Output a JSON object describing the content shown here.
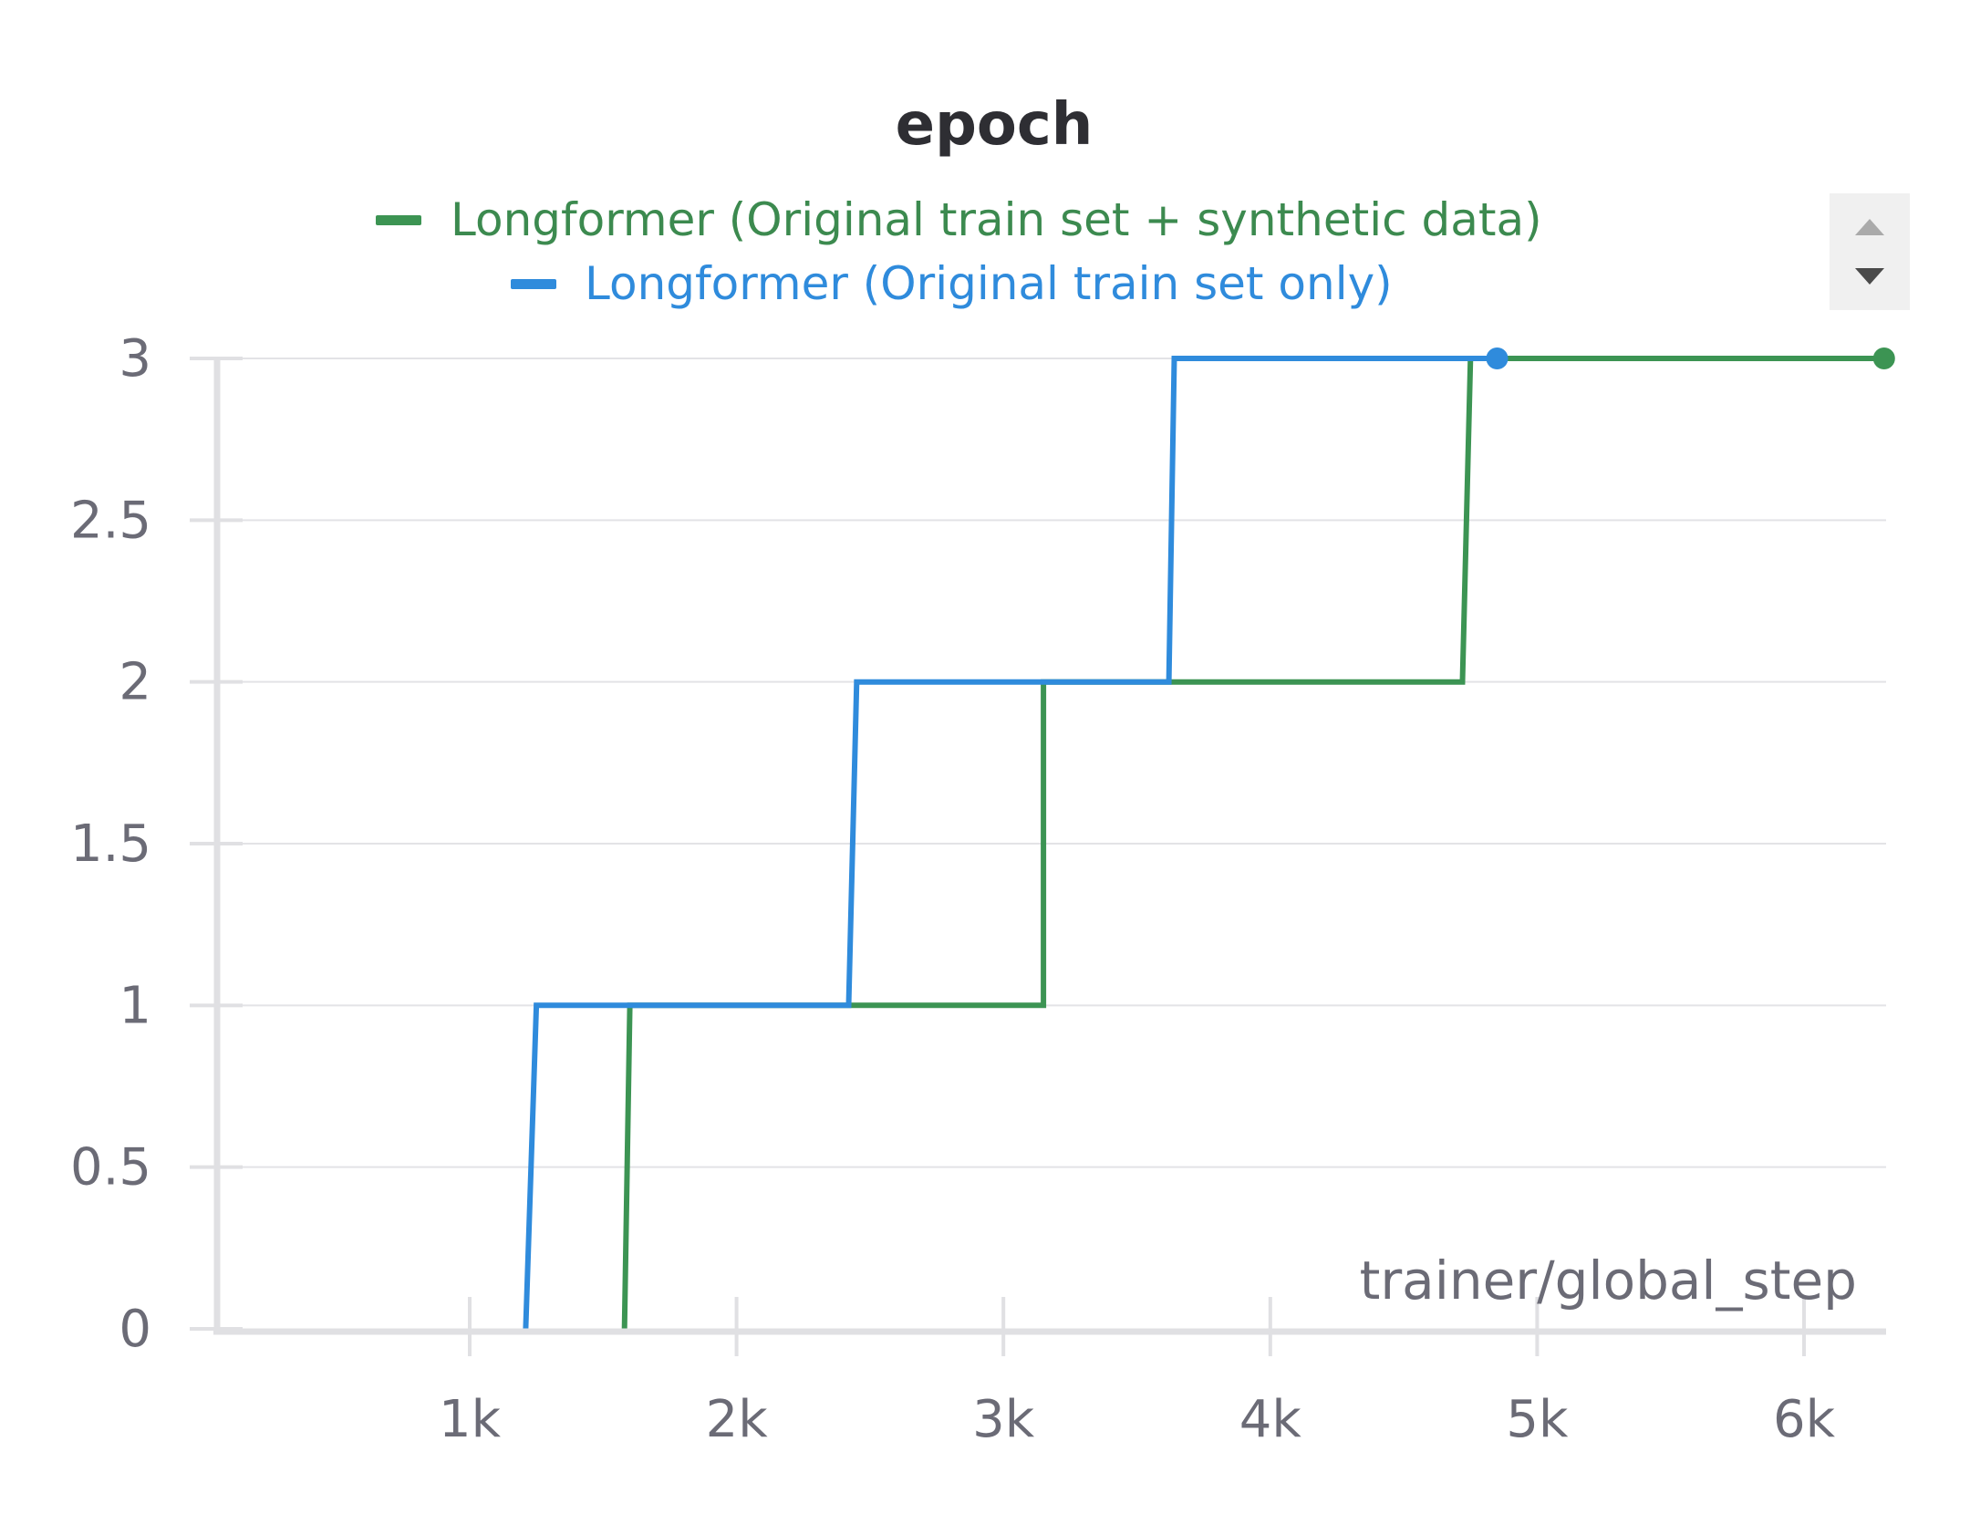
{
  "chart_data": {
    "type": "line",
    "title": "epoch",
    "xlabel": "trainer/global_step",
    "ylabel": "",
    "xlim": [
      0,
      6300
    ],
    "ylim": [
      0,
      3
    ],
    "x_ticks": [
      1000,
      2000,
      3000,
      4000,
      5000,
      6000
    ],
    "x_tick_labels": [
      "1k",
      "2k",
      "3k",
      "4k",
      "5k",
      "6k"
    ],
    "y_ticks": [
      0,
      0.5,
      1,
      1.5,
      2,
      2.5,
      3
    ],
    "y_tick_labels": [
      "0",
      "0.5",
      "1",
      "1.5",
      "2",
      "2.5",
      "3"
    ],
    "grid": true,
    "legend_position": "top",
    "series": [
      {
        "name": "Longformer (Original train set + synthetic data)",
        "color": "#3c9453",
        "points": [
          [
            1580,
            0
          ],
          [
            1600,
            1
          ],
          [
            3150,
            1
          ],
          [
            3150,
            2
          ],
          [
            4720,
            2
          ],
          [
            4750,
            3
          ],
          [
            6300,
            3
          ]
        ],
        "end_marker": true
      },
      {
        "name": "Longformer (Original train set only)",
        "color": "#2f8bdc",
        "points": [
          [
            1210,
            0
          ],
          [
            1250,
            1
          ],
          [
            2420,
            1
          ],
          [
            2450,
            2
          ],
          [
            3620,
            2
          ],
          [
            3640,
            3
          ],
          [
            4850,
            3
          ]
        ],
        "end_marker": true
      }
    ]
  },
  "legend_controls": {
    "up_icon": "triangle-up-icon",
    "down_icon": "triangle-down-icon"
  }
}
